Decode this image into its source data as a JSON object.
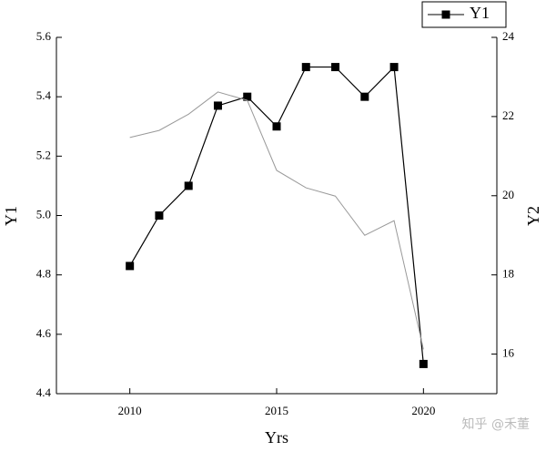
{
  "chart_data": {
    "type": "line",
    "x_label": "Yrs",
    "y_label": "Y1",
    "y2_label": "Y2",
    "x": [
      2010,
      2011,
      2012,
      2013,
      2014,
      2015,
      2016,
      2017,
      2018,
      2019,
      2020
    ],
    "series": [
      {
        "name": "Y1",
        "color": "#000000",
        "marker": "square",
        "values": [
          4.83,
          5.0,
          5.1,
          5.37,
          5.4,
          5.3,
          5.5,
          5.5,
          5.4,
          5.5,
          4.5
        ]
      },
      {
        "color": "#999999",
        "axis": "y2",
        "values": [
          21.47,
          21.65,
          22.06,
          22.62,
          22.41,
          20.64,
          20.2,
          19.99,
          19.0,
          19.37,
          16.12
        ]
      }
    ],
    "xlim": [
      2007.5,
      2022.5
    ],
    "xticks": [
      2010,
      2015,
      2020
    ],
    "ylim": [
      4.4,
      5.6
    ],
    "yticks": [
      4.4,
      4.6,
      4.8,
      5.0,
      5.2,
      5.4,
      5.6
    ],
    "y2lim": [
      15,
      24
    ],
    "y2ticks": [
      16,
      18,
      20,
      22,
      24
    ],
    "legend": "top-right",
    "watermark": "知乎 @禾董"
  }
}
